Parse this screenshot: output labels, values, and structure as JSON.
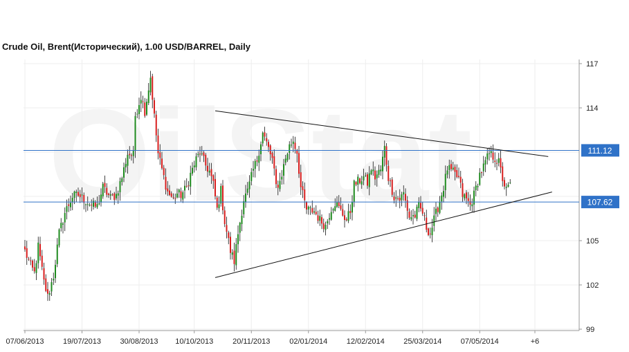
{
  "chart_data": {
    "type": "candlestick",
    "title": "Crude Oil, Brent(Исторический), 1.00 USD/BARREL, Daily",
    "y_ticks": [
      99,
      102,
      105,
      108,
      111,
      114,
      117
    ],
    "y_tick_labels": [
      "99",
      "102",
      "105",
      "",
      "",
      "114",
      "117"
    ],
    "ylim": [
      99,
      117.5
    ],
    "x_tick_labels": [
      "07/06/2013",
      "19/07/2013",
      "30/08/2013",
      "10/10/2013",
      "20/11/2013",
      "02/01/2014",
      "12/02/2014",
      "25/03/2014",
      "07/05/2014",
      "+6"
    ],
    "x_tick_index": [
      0,
      30,
      60,
      89,
      119,
      149,
      179,
      209,
      239,
      268
    ],
    "grid": true,
    "up_color": "#1e8a1e",
    "down_color": "#d81e1e",
    "level_color": "#2f72c8",
    "horizontal_levels": [
      {
        "value": 111.12,
        "label": "111.12"
      },
      {
        "value": 107.62,
        "label": "107.62"
      }
    ],
    "trendlines": [
      {
        "start": {
          "bar": 100,
          "price": 113.8
        },
        "end": {
          "bar": 275,
          "price": 110.7
        }
      },
      {
        "start": {
          "bar": 100,
          "price": 102.5
        },
        "end": {
          "bar": 277,
          "price": 108.3
        }
      }
    ],
    "watermark": "OilStat",
    "close_anchors": [
      [
        0,
        104.3
      ],
      [
        3,
        103.3
      ],
      [
        5,
        102.8
      ],
      [
        7,
        104.6
      ],
      [
        10,
        102.2
      ],
      [
        12,
        101.2
      ],
      [
        15,
        102.6
      ],
      [
        18,
        105.5
      ],
      [
        21,
        106.9
      ],
      [
        25,
        108.0
      ],
      [
        28,
        108.1
      ],
      [
        31,
        107.8
      ],
      [
        35,
        107.4
      ],
      [
        38,
        107.3
      ],
      [
        41,
        108.6
      ],
      [
        45,
        107.9
      ],
      [
        48,
        108.1
      ],
      [
        51,
        109.3
      ],
      [
        54,
        110.9
      ],
      [
        57,
        110.8
      ],
      [
        58,
        113.5
      ],
      [
        61,
        114.8
      ],
      [
        63,
        113.8
      ],
      [
        66,
        116.1
      ],
      [
        68,
        113.4
      ],
      [
        70,
        110.9
      ],
      [
        73,
        109.3
      ],
      [
        75,
        108.3
      ],
      [
        78,
        107.8
      ],
      [
        80,
        108.2
      ],
      [
        82,
        108.1
      ],
      [
        85,
        108.6
      ],
      [
        87,
        109.5
      ],
      [
        90,
        110.5
      ],
      [
        92,
        111.0
      ],
      [
        95,
        110.1
      ],
      [
        97,
        109.7
      ],
      [
        99,
        108.8
      ],
      [
        101,
        107.1
      ],
      [
        103,
        108.4
      ],
      [
        105,
        106.3
      ],
      [
        108,
        104.3
      ],
      [
        110,
        103.6
      ],
      [
        112,
        105.5
      ],
      [
        115,
        107.8
      ],
      [
        117,
        108.3
      ],
      [
        120,
        109.8
      ],
      [
        122,
        110.5
      ],
      [
        125,
        112.3
      ],
      [
        127,
        111.6
      ],
      [
        130,
        110.5
      ],
      [
        132,
        108.7
      ],
      [
        134,
        109.0
      ],
      [
        137,
        110.6
      ],
      [
        139,
        111.4
      ],
      [
        141,
        111.8
      ],
      [
        143,
        111.0
      ],
      [
        145,
        108.6
      ],
      [
        148,
        107.1
      ],
      [
        152,
        107.0
      ],
      [
        155,
        106.4
      ],
      [
        158,
        106.0
      ],
      [
        161,
        107.2
      ],
      [
        163,
        107.6
      ],
      [
        166,
        107.0
      ],
      [
        169,
        106.4
      ],
      [
        171,
        107.0
      ],
      [
        173,
        108.8
      ],
      [
        175,
        109.0
      ],
      [
        178,
        109.3
      ],
      [
        180,
        108.9
      ],
      [
        182,
        109.9
      ],
      [
        184,
        109.3
      ],
      [
        187,
        109.8
      ],
      [
        189,
        111.3
      ],
      [
        191,
        109.3
      ],
      [
        194,
        108.0
      ],
      [
        197,
        107.8
      ],
      [
        199,
        108.2
      ],
      [
        202,
        106.6
      ],
      [
        205,
        106.7
      ],
      [
        207,
        107.3
      ],
      [
        209,
        106.9
      ],
      [
        211,
        105.9
      ],
      [
        213,
        105.5
      ],
      [
        215,
        106.4
      ],
      [
        218,
        107.7
      ],
      [
        220,
        108.6
      ],
      [
        222,
        109.9
      ],
      [
        225,
        109.6
      ],
      [
        228,
        109.2
      ],
      [
        230,
        108.1
      ],
      [
        232,
        107.8
      ],
      [
        234,
        107.4
      ],
      [
        236,
        108.1
      ],
      [
        239,
        109.5
      ],
      [
        241,
        110.0
      ],
      [
        244,
        110.9
      ],
      [
        247,
        110.6
      ],
      [
        249,
        110.3
      ],
      [
        251,
        109.2
      ],
      [
        253,
        108.4
      ],
      [
        255,
        108.8
      ]
    ]
  }
}
